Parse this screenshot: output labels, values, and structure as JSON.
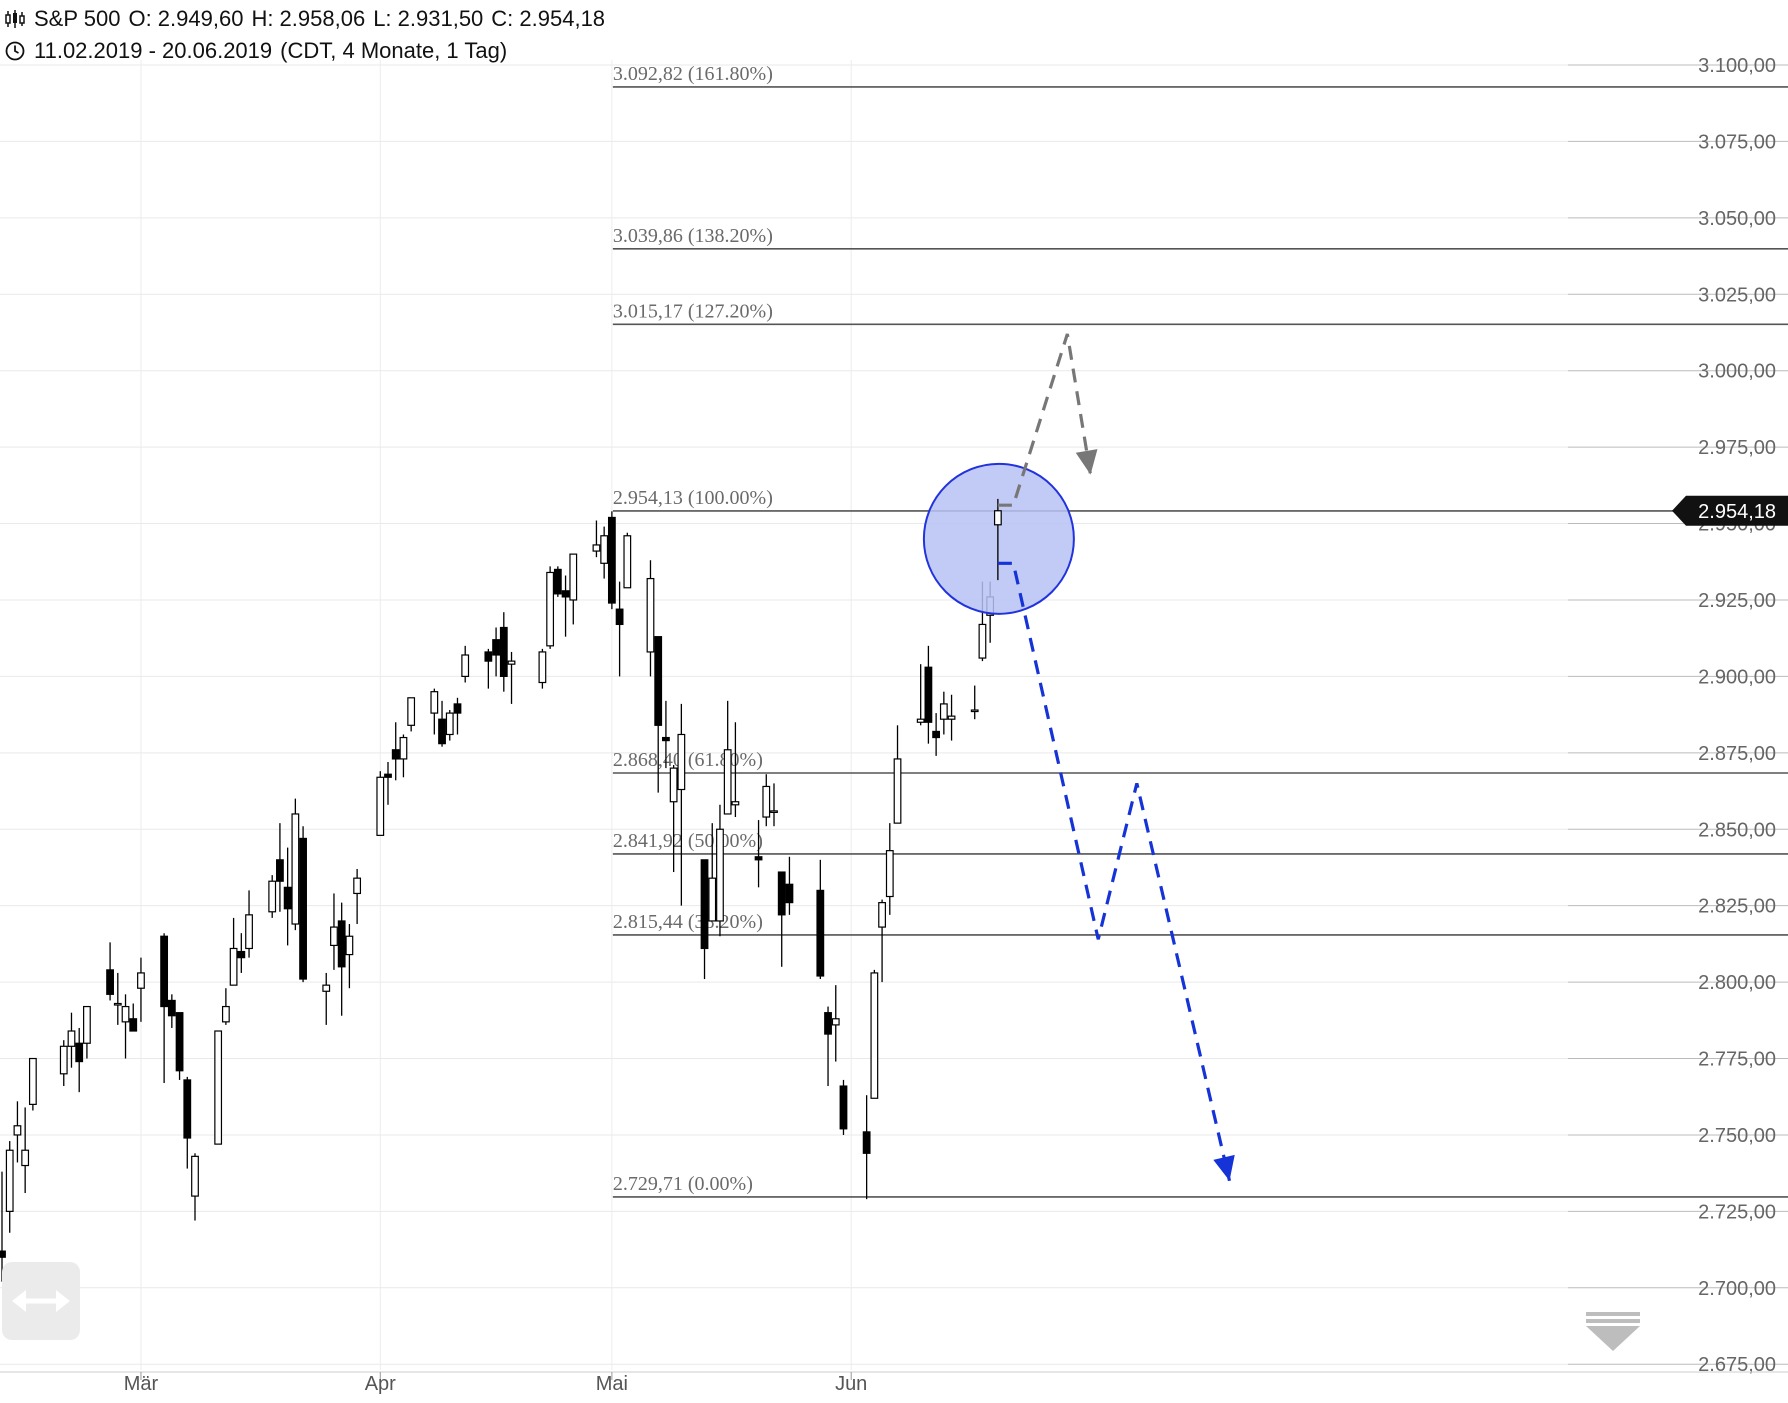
{
  "header": {
    "instrument": "S&P 500",
    "open": "O: 2.949,60",
    "high": "H: 2.958,06",
    "low": "L: 2.931,50",
    "close": "C: 2.954,18",
    "range": "11.02.2019 - 20.06.2019",
    "settings": "(CDT, 4 Monate, 1 Tag)"
  },
  "last_price_label": "2.954,18",
  "icons": {
    "chart_type": "candlestick-icon",
    "period": "clock-icon",
    "scroll": "horizontal-arrows-icon",
    "collapse": "collapse-down-icon"
  },
  "colors": {
    "up": "#ffffff",
    "down": "#000000",
    "fib_line": "#555555",
    "circle_fill": "#b7c2f5",
    "circle_stroke": "#2233dd",
    "arrow_gray": "#777777",
    "arrow_blue": "#1533d6",
    "last_price_bg": "#111111"
  },
  "chart_data": {
    "type": "candlestick",
    "x_start": "2019-02-11",
    "x_end": "2019-06-20",
    "ylim": [
      2675,
      3100
    ],
    "y_ticks": [
      2675,
      2700,
      2725,
      2750,
      2775,
      2800,
      2825,
      2850,
      2875,
      2900,
      2925,
      2950,
      2975,
      3000,
      3025,
      3050,
      3075,
      3100
    ],
    "y_tick_labels": [
      "2.675,00",
      "2.700,00",
      "2.725,00",
      "2.750,00",
      "2.775,00",
      "2.800,00",
      "2.825,00",
      "2.850,00",
      "2.875,00",
      "2.900,00",
      "2.925,00",
      "2.950,00",
      "2.975,00",
      "3.000,00",
      "3.025,00",
      "3.050,00",
      "3.075,00",
      "3.100,00"
    ],
    "x_ticks": [
      {
        "label": "Mär",
        "date": "2019-03-01"
      },
      {
        "label": "Apr",
        "date": "2019-04-01"
      },
      {
        "label": "Mai",
        "date": "2019-05-01"
      },
      {
        "label": "Jun",
        "date": "2019-06-01"
      }
    ],
    "grid": true,
    "candles": [
      {
        "date": "2019-02-11",
        "o": 2712,
        "h": 2738,
        "l": 2702,
        "c": 2710
      },
      {
        "date": "2019-02-12",
        "o": 2725,
        "h": 2748,
        "l": 2718,
        "c": 2745
      },
      {
        "date": "2019-02-13",
        "o": 2750,
        "h": 2761,
        "l": 2741,
        "c": 2753
      },
      {
        "date": "2019-02-14",
        "o": 2740,
        "h": 2759,
        "l": 2731,
        "c": 2745
      },
      {
        "date": "2019-02-15",
        "o": 2760,
        "h": 2775,
        "l": 2758,
        "c": 2775
      },
      {
        "date": "2019-02-19",
        "o": 2770,
        "h": 2781,
        "l": 2766,
        "c": 2779
      },
      {
        "date": "2019-02-20",
        "o": 2779,
        "h": 2790,
        "l": 2772,
        "c": 2784
      },
      {
        "date": "2019-02-21",
        "o": 2780,
        "h": 2785,
        "l": 2764,
        "c": 2774
      },
      {
        "date": "2019-02-22",
        "o": 2780,
        "h": 2792,
        "l": 2775,
        "c": 2792
      },
      {
        "date": "2019-02-25",
        "o": 2804,
        "h": 2813,
        "l": 2794,
        "c": 2796
      },
      {
        "date": "2019-02-26",
        "o": 2793,
        "h": 2803,
        "l": 2786,
        "c": 2793
      },
      {
        "date": "2019-02-27",
        "o": 2787,
        "h": 2796,
        "l": 2775,
        "c": 2792
      },
      {
        "date": "2019-02-28",
        "o": 2788,
        "h": 2793,
        "l": 2784,
        "c": 2784
      },
      {
        "date": "2019-03-01",
        "o": 2798,
        "h": 2808,
        "l": 2787,
        "c": 2803
      },
      {
        "date": "2019-03-04",
        "o": 2815,
        "h": 2816,
        "l": 2767,
        "c": 2792
      },
      {
        "date": "2019-03-05",
        "o": 2794,
        "h": 2796,
        "l": 2785,
        "c": 2789
      },
      {
        "date": "2019-03-06",
        "o": 2790,
        "h": 2790,
        "l": 2768,
        "c": 2771
      },
      {
        "date": "2019-03-07",
        "o": 2768,
        "h": 2769,
        "l": 2739,
        "c": 2749
      },
      {
        "date": "2019-03-08",
        "o": 2730,
        "h": 2744,
        "l": 2722,
        "c": 2743
      },
      {
        "date": "2019-03-11",
        "o": 2747,
        "h": 2784,
        "l": 2747,
        "c": 2784
      },
      {
        "date": "2019-03-12",
        "o": 2787,
        "h": 2798,
        "l": 2786,
        "c": 2792
      },
      {
        "date": "2019-03-13",
        "o": 2799,
        "h": 2821,
        "l": 2799,
        "c": 2811
      },
      {
        "date": "2019-03-14",
        "o": 2810,
        "h": 2816,
        "l": 2803,
        "c": 2808
      },
      {
        "date": "2019-03-15",
        "o": 2811,
        "h": 2830,
        "l": 2808,
        "c": 2822
      },
      {
        "date": "2019-03-18",
        "o": 2823,
        "h": 2835,
        "l": 2821,
        "c": 2833
      },
      {
        "date": "2019-03-19",
        "o": 2840,
        "h": 2852,
        "l": 2823,
        "c": 2833
      },
      {
        "date": "2019-03-20",
        "o": 2831,
        "h": 2844,
        "l": 2812,
        "c": 2824
      },
      {
        "date": "2019-03-21",
        "o": 2819,
        "h": 2860,
        "l": 2817,
        "c": 2855
      },
      {
        "date": "2019-03-22",
        "o": 2847,
        "h": 2851,
        "l": 2800,
        "c": 2801
      },
      {
        "date": "2019-03-25",
        "o": 2797,
        "h": 2803,
        "l": 2786,
        "c": 2799
      },
      {
        "date": "2019-03-26",
        "o": 2812,
        "h": 2829,
        "l": 2804,
        "c": 2818
      },
      {
        "date": "2019-03-27",
        "o": 2820,
        "h": 2826,
        "l": 2789,
        "c": 2805
      },
      {
        "date": "2019-03-28",
        "o": 2809,
        "h": 2819,
        "l": 2798,
        "c": 2815
      },
      {
        "date": "2019-03-29",
        "o": 2829,
        "h": 2837,
        "l": 2819,
        "c": 2834
      },
      {
        "date": "2019-04-01",
        "o": 2848,
        "h": 2869,
        "l": 2848,
        "c": 2867
      },
      {
        "date": "2019-04-02",
        "o": 2868,
        "h": 2872,
        "l": 2858,
        "c": 2867
      },
      {
        "date": "2019-04-03",
        "o": 2876,
        "h": 2885,
        "l": 2866,
        "c": 2873
      },
      {
        "date": "2019-04-04",
        "o": 2873,
        "h": 2881,
        "l": 2867,
        "c": 2880
      },
      {
        "date": "2019-04-05",
        "o": 2884,
        "h": 2893,
        "l": 2882,
        "c": 2893
      },
      {
        "date": "2019-04-08",
        "o": 2888,
        "h": 2896,
        "l": 2881,
        "c": 2895
      },
      {
        "date": "2019-04-09",
        "o": 2886,
        "h": 2892,
        "l": 2877,
        "c": 2878
      },
      {
        "date": "2019-04-10",
        "o": 2881,
        "h": 2889,
        "l": 2879,
        "c": 2888
      },
      {
        "date": "2019-04-11",
        "o": 2891,
        "h": 2893,
        "l": 2881,
        "c": 2888
      },
      {
        "date": "2019-04-12",
        "o": 2900,
        "h": 2910,
        "l": 2898,
        "c": 2907
      },
      {
        "date": "2019-04-15",
        "o": 2908,
        "h": 2909,
        "l": 2896,
        "c": 2905
      },
      {
        "date": "2019-04-16",
        "o": 2912,
        "h": 2916,
        "l": 2900,
        "c": 2907
      },
      {
        "date": "2019-04-17",
        "o": 2916,
        "h": 2921,
        "l": 2895,
        "c": 2900
      },
      {
        "date": "2019-04-18",
        "o": 2904,
        "h": 2908,
        "l": 2891,
        "c": 2905
      },
      {
        "date": "2019-04-22",
        "o": 2898,
        "h": 2909,
        "l": 2896,
        "c": 2908
      },
      {
        "date": "2019-04-23",
        "o": 2910,
        "h": 2936,
        "l": 2909,
        "c": 2934
      },
      {
        "date": "2019-04-24",
        "o": 2935,
        "h": 2936,
        "l": 2926,
        "c": 2927
      },
      {
        "date": "2019-04-25",
        "o": 2928,
        "h": 2933,
        "l": 2913,
        "c": 2926
      },
      {
        "date": "2019-04-26",
        "o": 2925,
        "h": 2940,
        "l": 2917,
        "c": 2940
      },
      {
        "date": "2019-04-29",
        "o": 2941,
        "h": 2951,
        "l": 2939,
        "c": 2943
      },
      {
        "date": "2019-04-30",
        "o": 2937,
        "h": 2949,
        "l": 2932,
        "c": 2946
      },
      {
        "date": "2019-05-01",
        "o": 2952,
        "h": 2954,
        "l": 2922,
        "c": 2924
      },
      {
        "date": "2019-05-02",
        "o": 2922,
        "h": 2931,
        "l": 2900,
        "c": 2917
      },
      {
        "date": "2019-05-03",
        "o": 2929,
        "h": 2947,
        "l": 2929,
        "c": 2946
      },
      {
        "date": "2019-05-06",
        "o": 2908,
        "h": 2938,
        "l": 2900,
        "c": 2932
      },
      {
        "date": "2019-05-07",
        "o": 2913,
        "h": 2913,
        "l": 2862,
        "c": 2884
      },
      {
        "date": "2019-05-08",
        "o": 2880,
        "h": 2892,
        "l": 2870,
        "c": 2879
      },
      {
        "date": "2019-05-09",
        "o": 2859,
        "h": 2871,
        "l": 2836,
        "c": 2870
      },
      {
        "date": "2019-05-10",
        "o": 2863,
        "h": 2891,
        "l": 2825,
        "c": 2881
      },
      {
        "date": "2019-05-13",
        "o": 2840,
        "h": 2840,
        "l": 2801,
        "c": 2811
      },
      {
        "date": "2019-05-14",
        "o": 2820,
        "h": 2852,
        "l": 2820,
        "c": 2834
      },
      {
        "date": "2019-05-15",
        "o": 2820,
        "h": 2858,
        "l": 2815,
        "c": 2850
      },
      {
        "date": "2019-05-16",
        "o": 2855,
        "h": 2892,
        "l": 2855,
        "c": 2876
      },
      {
        "date": "2019-05-17",
        "o": 2858,
        "h": 2885,
        "l": 2854,
        "c": 2859
      },
      {
        "date": "2019-05-20",
        "o": 2841,
        "h": 2853,
        "l": 2831,
        "c": 2840
      },
      {
        "date": "2019-05-21",
        "o": 2854,
        "h": 2868,
        "l": 2851,
        "c": 2864
      },
      {
        "date": "2019-05-22",
        "o": 2856,
        "h": 2865,
        "l": 2851,
        "c": 2856
      },
      {
        "date": "2019-05-23",
        "o": 2836,
        "h": 2836,
        "l": 2805,
        "c": 2822
      },
      {
        "date": "2019-05-24",
        "o": 2832,
        "h": 2841,
        "l": 2822,
        "c": 2826
      },
      {
        "date": "2019-05-28",
        "o": 2830,
        "h": 2840,
        "l": 2801,
        "c": 2802
      },
      {
        "date": "2019-05-29",
        "o": 2790,
        "h": 2792,
        "l": 2766,
        "c": 2783
      },
      {
        "date": "2019-05-30",
        "o": 2786,
        "h": 2799,
        "l": 2774,
        "c": 2788
      },
      {
        "date": "2019-05-31",
        "o": 2766,
        "h": 2768,
        "l": 2750,
        "c": 2752
      },
      {
        "date": "2019-06-03",
        "o": 2751,
        "h": 2763,
        "l": 2729,
        "c": 2744
      },
      {
        "date": "2019-06-04",
        "o": 2762,
        "h": 2804,
        "l": 2762,
        "c": 2803
      },
      {
        "date": "2019-06-05",
        "o": 2818,
        "h": 2827,
        "l": 2800,
        "c": 2826
      },
      {
        "date": "2019-06-06",
        "o": 2828,
        "h": 2852,
        "l": 2822,
        "c": 2843
      },
      {
        "date": "2019-06-07",
        "o": 2852,
        "h": 2884,
        "l": 2852,
        "c": 2873
      },
      {
        "date": "2019-06-10",
        "o": 2885,
        "h": 2904,
        "l": 2884,
        "c": 2886
      },
      {
        "date": "2019-06-11",
        "o": 2903,
        "h": 2910,
        "l": 2878,
        "c": 2885
      },
      {
        "date": "2019-06-12",
        "o": 2882,
        "h": 2888,
        "l": 2874,
        "c": 2880
      },
      {
        "date": "2019-06-13",
        "o": 2886,
        "h": 2895,
        "l": 2881,
        "c": 2891
      },
      {
        "date": "2019-06-14",
        "o": 2886,
        "h": 2894,
        "l": 2879,
        "c": 2887
      },
      {
        "date": "2019-06-17",
        "o": 2889,
        "h": 2897,
        "l": 2886,
        "c": 2889
      },
      {
        "date": "2019-06-18",
        "o": 2906,
        "h": 2931,
        "l": 2905,
        "c": 2917
      },
      {
        "date": "2019-06-19",
        "o": 2920,
        "h": 2931,
        "l": 2911,
        "c": 2926
      },
      {
        "date": "2019-06-20",
        "o": 2949.6,
        "h": 2958.06,
        "l": 2931.5,
        "c": 2954.18
      }
    ],
    "fib_start_date": "2019-05-01",
    "fib_levels": [
      {
        "label": "3.092,82 (161.80%)",
        "value": 3092.82
      },
      {
        "label": "3.039,86 (138.20%)",
        "value": 3039.86
      },
      {
        "label": "3.015,17 (127.20%)",
        "value": 3015.17
      },
      {
        "label": "2.954,13 (100.00%)",
        "value": 2954.13
      },
      {
        "label": "2.868,40 (61.80%)",
        "value": 2868.4
      },
      {
        "label": "2.841,92 (50.00%)",
        "value": 2841.92
      },
      {
        "label": "2.815,44 (38.20%)",
        "value": 2815.44
      },
      {
        "label": "2.729,71 (0.00%)",
        "value": 2729.71
      }
    ],
    "last_price": 2954.18,
    "annotations": {
      "highlight_circle": {
        "date": "2019-06-20",
        "value": 2945
      },
      "gray_path": [
        {
          "date": "2019-06-20",
          "value": 2956
        },
        {
          "date": "2019-06-22",
          "value": 2956
        },
        {
          "date": "2019-06-29",
          "value": 3012
        },
        {
          "date": "2019-07-02",
          "value": 2966
        }
      ],
      "blue_path": [
        {
          "date": "2019-06-20",
          "value": 2937
        },
        {
          "date": "2019-06-22",
          "value": 2937
        },
        {
          "date": "2019-07-03",
          "value": 2814
        },
        {
          "date": "2019-07-08",
          "value": 2865
        },
        {
          "date": "2019-07-20",
          "value": 2735
        }
      ]
    }
  }
}
